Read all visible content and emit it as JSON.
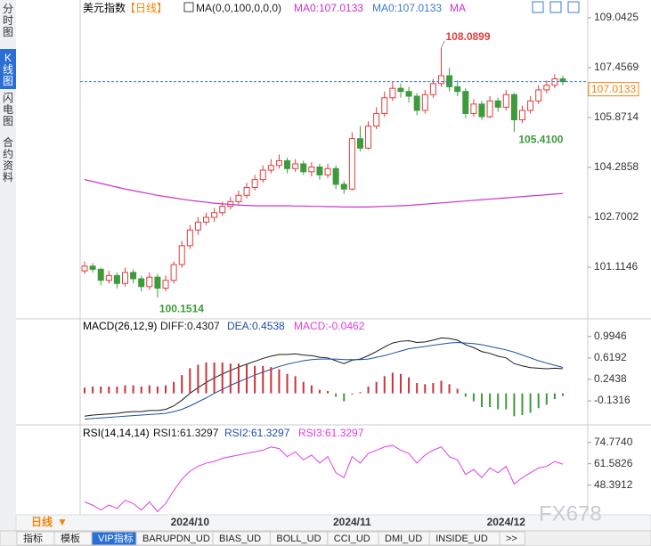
{
  "sidebar": [
    "分时图",
    "K线图",
    "闪电图",
    "合约资料"
  ],
  "toolbar": {
    "period": "日线",
    "tabs": [
      "指标",
      "模板",
      "VIP指标",
      "BARUPDN_UD",
      "BIAS_UD",
      "BOLL_UD",
      "CCI_UD",
      "DMI_UD",
      "INSIDE_UD",
      ">>"
    ]
  },
  "watermark": "FX678",
  "chart_data": [
    {
      "type": "candlestick",
      "title": "美元指数",
      "period": "【日线】",
      "legend": [
        "MA(0,0,100,0,0,0)",
        "MA0:107.0133",
        "MA0:107.0133",
        "MA"
      ],
      "categories": [
        null,
        null,
        null,
        null,
        null,
        null,
        null,
        null,
        null,
        null,
        null,
        null,
        null,
        "2024/10",
        null,
        null,
        null,
        null,
        null,
        null,
        null,
        null,
        null,
        null,
        null,
        null,
        null,
        null,
        null,
        null,
        null,
        null,
        null,
        "2024/11",
        null,
        null,
        null,
        null,
        null,
        null,
        null,
        null,
        null,
        null,
        null,
        null,
        null,
        null,
        null,
        null,
        null,
        null,
        "2024/12",
        null,
        null,
        null,
        null,
        null,
        null,
        null
      ],
      "open": [
        101.0,
        101.15,
        101.05,
        100.7,
        100.85,
        100.6,
        100.95,
        100.75,
        100.5,
        100.8,
        100.45,
        100.7,
        101.2,
        101.8,
        102.3,
        102.55,
        102.7,
        102.85,
        103.05,
        103.2,
        103.4,
        103.65,
        103.9,
        104.2,
        104.35,
        104.5,
        104.25,
        104.4,
        104.15,
        104.3,
        104.05,
        104.25,
        103.75,
        103.6,
        105.2,
        104.9,
        105.6,
        106.0,
        106.5,
        106.8,
        106.7,
        106.55,
        106.1,
        106.6,
        106.95,
        107.2,
        106.85,
        106.7,
        106.0,
        106.3,
        105.9,
        106.4,
        106.2,
        106.6,
        105.8,
        106.1,
        106.4,
        106.75,
        106.9,
        107.1
      ],
      "high": [
        101.3,
        101.25,
        101.1,
        101.0,
        100.95,
        101.1,
        101.05,
        100.85,
        100.95,
        100.9,
        100.85,
        101.3,
        101.95,
        102.45,
        102.7,
        102.85,
        103.0,
        103.2,
        103.35,
        103.55,
        103.8,
        104.05,
        104.35,
        104.55,
        104.7,
        104.6,
        104.55,
        104.5,
        104.45,
        104.4,
        104.4,
        104.35,
        103.85,
        105.4,
        105.6,
        105.75,
        106.2,
        106.7,
        107.0,
        106.95,
        106.85,
        106.65,
        106.75,
        107.1,
        108.0899,
        107.45,
        107.05,
        106.8,
        106.45,
        106.4,
        106.55,
        106.5,
        106.75,
        106.65,
        106.25,
        106.55,
        106.9,
        107.05,
        107.25,
        107.2
      ],
      "low": [
        100.9,
        100.95,
        100.55,
        100.6,
        100.45,
        100.5,
        100.6,
        100.35,
        100.4,
        100.1514,
        100.35,
        100.6,
        101.1,
        101.7,
        102.15,
        102.45,
        102.55,
        102.75,
        102.95,
        103.1,
        103.3,
        103.55,
        103.8,
        104.1,
        104.25,
        104.1,
        104.15,
        104.05,
        104.0,
        103.9,
        103.95,
        103.6,
        103.45,
        103.55,
        104.8,
        104.85,
        105.5,
        105.9,
        106.4,
        106.5,
        106.35,
        105.95,
        106.0,
        106.5,
        106.85,
        106.7,
        106.55,
        105.85,
        105.9,
        105.8,
        105.85,
        106.05,
        106.1,
        105.41,
        105.7,
        106.0,
        106.3,
        106.65,
        106.8,
        106.9
      ],
      "close": [
        101.15,
        101.05,
        100.7,
        100.85,
        100.6,
        100.95,
        100.75,
        100.5,
        100.8,
        100.45,
        100.7,
        101.2,
        101.8,
        102.3,
        102.55,
        102.7,
        102.85,
        103.05,
        103.2,
        103.4,
        103.65,
        103.9,
        104.2,
        104.35,
        104.5,
        104.25,
        104.4,
        104.15,
        104.3,
        104.05,
        104.25,
        103.75,
        103.6,
        105.2,
        104.9,
        105.6,
        106.0,
        106.5,
        106.8,
        106.7,
        106.55,
        106.1,
        106.6,
        106.95,
        107.2,
        106.85,
        106.7,
        106.0,
        106.3,
        105.9,
        106.4,
        106.2,
        106.6,
        105.8,
        106.1,
        106.4,
        106.75,
        106.9,
        107.1,
        107.0133
      ],
      "up_color": "#e03c3c",
      "down_color": "#3d9a3d",
      "last_color": "#f0850c",
      "last_line_color": "#3a7bd5",
      "ma": {
        "color": "#cc33cc",
        "values": [
          103.9,
          103.84,
          103.78,
          103.72,
          103.66,
          103.6,
          103.55,
          103.5,
          103.45,
          103.4,
          103.36,
          103.32,
          103.28,
          103.24,
          103.21,
          103.18,
          103.15,
          103.13,
          103.11,
          103.09,
          103.08,
          103.07,
          103.07,
          103.07,
          103.07,
          103.07,
          103.06,
          103.06,
          103.05,
          103.05,
          103.04,
          103.04,
          103.03,
          103.03,
          103.03,
          103.03,
          103.04,
          103.05,
          103.06,
          103.07,
          103.08,
          103.1,
          103.12,
          103.14,
          103.16,
          103.18,
          103.2,
          103.22,
          103.24,
          103.26,
          103.28,
          103.3,
          103.32,
          103.34,
          103.36,
          103.38,
          103.4,
          103.42,
          103.44,
          103.46
        ]
      },
      "annotations": [
        "108.0899",
        "105.4100",
        "100.1514"
      ],
      "ylim": [
        99.56,
        109.38
      ],
      "yticks": [
        109.0425,
        107.4569,
        105.8714,
        104.2858,
        102.7002,
        101.1146
      ]
    },
    {
      "type": "macd",
      "title": "MACD(26,12,9)",
      "series": [
        {
          "name": "DIFF:0.4307",
          "color": "#1a1a1a",
          "values": [
            -0.4,
            -0.38,
            -0.37,
            -0.36,
            -0.35,
            -0.33,
            -0.32,
            -0.32,
            -0.3,
            -0.3,
            -0.28,
            -0.22,
            -0.12,
            0.0,
            0.1,
            0.19,
            0.27,
            0.34,
            0.4,
            0.46,
            0.51,
            0.56,
            0.61,
            0.65,
            0.68,
            0.68,
            0.69,
            0.67,
            0.66,
            0.63,
            0.62,
            0.57,
            0.52,
            0.58,
            0.6,
            0.66,
            0.73,
            0.81,
            0.88,
            0.91,
            0.92,
            0.89,
            0.9,
            0.93,
            0.97,
            0.96,
            0.93,
            0.85,
            0.8,
            0.73,
            0.7,
            0.65,
            0.62,
            0.52,
            0.48,
            0.45,
            0.44,
            0.43,
            0.44,
            0.4307
          ]
        },
        {
          "name": "DEA:0.4538",
          "color": "#1f4fa8",
          "values": [
            -0.45,
            -0.44,
            -0.43,
            -0.42,
            -0.41,
            -0.4,
            -0.39,
            -0.38,
            -0.37,
            -0.36,
            -0.35,
            -0.32,
            -0.28,
            -0.22,
            -0.15,
            -0.08,
            0.0,
            0.07,
            0.14,
            0.2,
            0.26,
            0.32,
            0.37,
            0.42,
            0.47,
            0.51,
            0.54,
            0.57,
            0.59,
            0.6,
            0.6,
            0.6,
            0.59,
            0.59,
            0.59,
            0.6,
            0.63,
            0.66,
            0.7,
            0.74,
            0.78,
            0.8,
            0.82,
            0.84,
            0.86,
            0.88,
            0.89,
            0.88,
            0.87,
            0.85,
            0.82,
            0.79,
            0.76,
            0.72,
            0.67,
            0.62,
            0.57,
            0.53,
            0.49,
            0.4538
          ]
        },
        {
          "name": "MACD:-0.0462",
          "color": "#c8323c",
          "negative_color": "#3d9a3d",
          "values": [
            0.1,
            0.12,
            0.12,
            0.12,
            0.12,
            0.14,
            0.14,
            0.12,
            0.14,
            0.12,
            0.14,
            0.2,
            0.32,
            0.44,
            0.5,
            0.54,
            0.54,
            0.54,
            0.52,
            0.52,
            0.5,
            0.48,
            0.48,
            0.46,
            0.42,
            0.34,
            0.3,
            0.2,
            0.14,
            0.06,
            0.04,
            -0.06,
            -0.14,
            -0.02,
            0.02,
            0.12,
            0.2,
            0.3,
            0.36,
            0.34,
            0.28,
            0.18,
            0.16,
            0.18,
            0.22,
            0.16,
            0.08,
            -0.06,
            -0.14,
            -0.24,
            -0.24,
            -0.28,
            -0.28,
            -0.4,
            -0.38,
            -0.34,
            -0.26,
            -0.2,
            -0.1,
            -0.0462
          ]
        }
      ],
      "ylim": [
        -0.52,
        1.24
      ],
      "yticks": [
        0.9946,
        0.6192,
        0.2438,
        -0.1316
      ]
    },
    {
      "type": "line",
      "title": "RSI(14,14,14)",
      "legend": [
        {
          "name": "RSI1:61.3297",
          "color": "#1a1a1a"
        },
        {
          "name": "RSI2:61.3297",
          "color": "#1f4fa8"
        },
        {
          "name": "RSI3:61.3297",
          "color": "#e03ce0"
        }
      ],
      "color": "#e03ce0",
      "values": [
        38,
        36,
        33,
        36,
        34,
        39,
        37,
        33,
        38,
        32,
        37,
        45,
        52,
        57,
        60,
        62,
        63,
        65,
        66,
        67,
        68,
        69,
        70,
        72,
        71,
        66,
        69,
        64,
        67,
        62,
        66,
        56,
        53,
        66,
        62,
        68,
        70,
        72,
        73,
        70,
        68,
        62,
        67,
        70,
        72,
        66,
        64,
        55,
        58,
        53,
        59,
        56,
        60,
        49,
        53,
        56,
        59,
        60,
        63,
        61.3297
      ],
      "ylim": [
        30,
        84
      ],
      "yticks": [
        {
          "value": 74.774,
          "label": "74.7740"
        },
        61.5826,
        48.3912
      ]
    }
  ]
}
